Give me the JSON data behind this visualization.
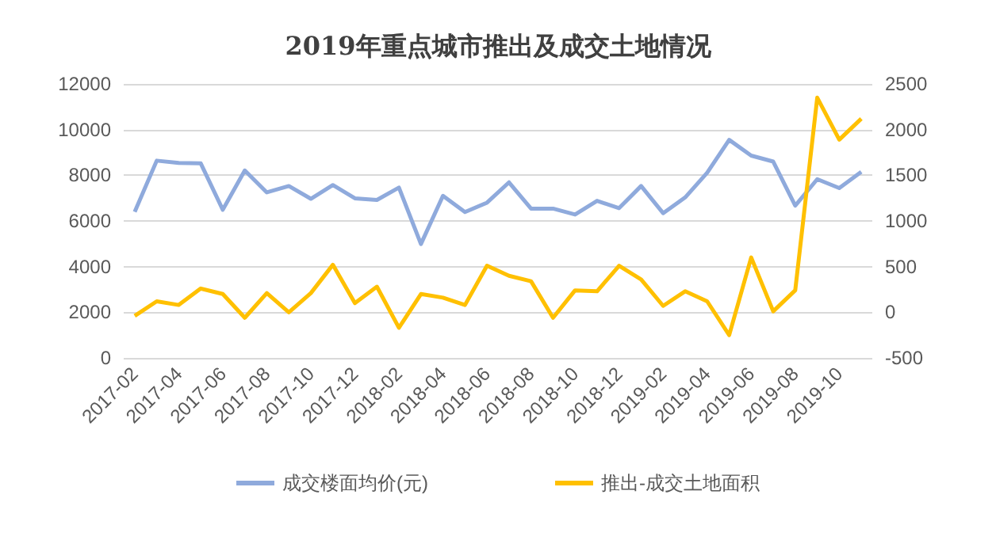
{
  "chart_data": {
    "type": "line",
    "title": "2019年重点城市推出及成交土地情况",
    "categories": [
      "2017-02",
      null,
      "2017-04",
      null,
      "2017-06",
      null,
      "2017-08",
      null,
      "2017-10",
      null,
      "2017-12",
      null,
      "2018-02",
      null,
      "2018-04",
      null,
      "2018-06",
      null,
      "2018-08",
      null,
      "2018-10",
      null,
      "2018-12",
      null,
      "2019-02",
      null,
      "2019-04",
      null,
      "2019-06",
      null,
      "2019-08",
      null,
      "2019-10",
      null
    ],
    "series": [
      {
        "name": "成交楼面均价(元)",
        "color": "#8faadc",
        "values": [
          6400,
          8640,
          8540,
          8520,
          6490,
          8210,
          7250,
          7530,
          6970,
          7570,
          6990,
          6920,
          7460,
          4990,
          7100,
          6390,
          6800,
          7690,
          6540,
          6540,
          6280,
          6880,
          6560,
          7530,
          6340,
          7030,
          8110,
          9550,
          8860,
          8600,
          6670,
          7830,
          7440,
          8150
        ]
      },
      {
        "name": "推出-成交土地面积",
        "color": "#ffc000",
        "axis": "y2",
        "values": [
          -40,
          120,
          80,
          260,
          200,
          -60,
          210,
          0,
          210,
          520,
          100,
          280,
          -170,
          200,
          160,
          80,
          510,
          400,
          340,
          -60,
          240,
          230,
          510,
          360,
          70,
          230,
          120,
          -250,
          600,
          10,
          240,
          2350,
          1890,
          2120
        ]
      }
    ],
    "ylim": [
      0,
      12000
    ],
    "yticks": [
      0,
      2000,
      4000,
      6000,
      8000,
      10000,
      12000
    ],
    "y2lim": [
      -500,
      2500
    ],
    "y2ticks": [
      -500,
      0,
      500,
      1000,
      1500,
      2000,
      2500
    ],
    "grid": "y",
    "legend": "bottom",
    "marker": "none",
    "line_style": "solid"
  }
}
